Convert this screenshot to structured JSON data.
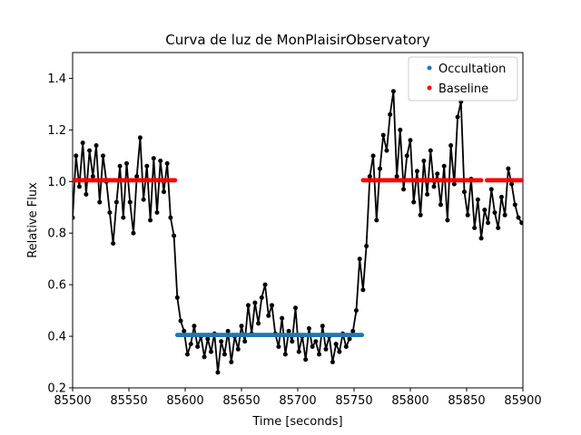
{
  "chart_data": {
    "type": "scatter",
    "title": "Curva de luz de MonPlaisirObservatory",
    "xlabel": "Time [seconds]",
    "ylabel": "Relative Flux",
    "xlim": [
      85500,
      85900
    ],
    "ylim": [
      0.2,
      1.5
    ],
    "xticks": [
      "85500",
      "85550",
      "85600",
      "85650",
      "85700",
      "85750",
      "85800",
      "85850",
      "85900"
    ],
    "yticks": [
      "0.2",
      "0.4",
      "0.6",
      "0.8",
      "1.0",
      "1.2",
      "1.4"
    ],
    "grid": false,
    "legend_position": "top-right",
    "colors": {
      "data": "#000000",
      "occultation": "#1f77b4",
      "baseline": "#ff0000"
    },
    "series": [
      {
        "kind": "line-markers",
        "x": [
          85500,
          85503,
          85506,
          85509,
          85512,
          85515,
          85518,
          85521,
          85524,
          85527,
          85530,
          85533,
          85536,
          85539,
          85542,
          85545,
          85548,
          85551,
          85554,
          85557,
          85560,
          85563,
          85566,
          85569,
          85572,
          85575,
          85578,
          85581,
          85584,
          85587,
          85590,
          85593,
          85596,
          85599,
          85602,
          85605,
          85608,
          85611,
          85614,
          85617,
          85620,
          85623,
          85626,
          85629,
          85632,
          85635,
          85638,
          85641,
          85644,
          85647,
          85650,
          85653,
          85656,
          85659,
          85662,
          85665,
          85668,
          85671,
          85674,
          85677,
          85680,
          85683,
          85686,
          85689,
          85692,
          85695,
          85698,
          85701,
          85704,
          85707,
          85710,
          85713,
          85716,
          85719,
          85722,
          85725,
          85728,
          85731,
          85734,
          85737,
          85740,
          85743,
          85746,
          85749,
          85752,
          85755,
          85758,
          85761,
          85764,
          85767,
          85770,
          85773,
          85776,
          85779,
          85782,
          85785,
          85788,
          85791,
          85794,
          85797,
          85800,
          85803,
          85806,
          85809,
          85812,
          85815,
          85818,
          85821,
          85824,
          85827,
          85830,
          85833,
          85836,
          85839,
          85842,
          85845,
          85848,
          85851,
          85854,
          85857,
          85860,
          85863,
          85866,
          85869,
          85872,
          85875,
          85878,
          85881,
          85884,
          85887,
          85890,
          85893,
          85896,
          85899
        ],
        "y": [
          0.86,
          1.1,
          0.98,
          1.15,
          0.95,
          1.12,
          1.02,
          1.14,
          0.92,
          1.1,
          1.0,
          0.88,
          0.76,
          0.92,
          1.06,
          0.86,
          1.07,
          0.92,
          0.8,
          1.02,
          1.17,
          0.93,
          1.06,
          0.85,
          1.09,
          0.88,
          1.08,
          0.96,
          1.07,
          0.86,
          0.79,
          0.55,
          0.46,
          0.42,
          0.33,
          0.37,
          0.44,
          0.36,
          0.4,
          0.32,
          0.39,
          0.34,
          0.41,
          0.26,
          0.38,
          0.33,
          0.42,
          0.3,
          0.4,
          0.35,
          0.44,
          0.38,
          0.52,
          0.41,
          0.53,
          0.45,
          0.55,
          0.6,
          0.48,
          0.52,
          0.41,
          0.36,
          0.47,
          0.33,
          0.42,
          0.38,
          0.51,
          0.34,
          0.4,
          0.31,
          0.43,
          0.36,
          0.38,
          0.33,
          0.44,
          0.35,
          0.4,
          0.3,
          0.37,
          0.34,
          0.41,
          0.36,
          0.39,
          0.42,
          0.5,
          0.7,
          0.58,
          0.75,
          1.02,
          1.1,
          0.85,
          1.05,
          1.18,
          1.12,
          1.26,
          1.35,
          1.02,
          1.2,
          0.97,
          1.1,
          1.16,
          0.92,
          1.04,
          0.87,
          1.08,
          0.95,
          1.12,
          0.98,
          1.03,
          0.91,
          1.06,
          0.85,
          1.14,
          0.99,
          1.25,
          1.31,
          0.96,
          0.87,
          1.01,
          0.82,
          0.93,
          0.78,
          0.89,
          0.84,
          0.97,
          0.88,
          0.82,
          0.94,
          0.87,
          1.05,
          0.99,
          0.91,
          0.86,
          0.84
        ]
      },
      {
        "name": "Occultation",
        "kind": "dots",
        "x_start": 85593,
        "x_end": 85757,
        "step": 1,
        "y": 0.405
      },
      {
        "name": "Baseline",
        "kind": "dots",
        "segments": [
          {
            "x_start": 85500,
            "x_end": 85591,
            "step": 1,
            "y": 1.005
          },
          {
            "x_start": 85758,
            "x_end": 85863,
            "step": 1,
            "y": 1.005
          },
          {
            "x_start": 85868,
            "x_end": 85900,
            "step": 1,
            "y": 1.005
          }
        ]
      }
    ]
  }
}
